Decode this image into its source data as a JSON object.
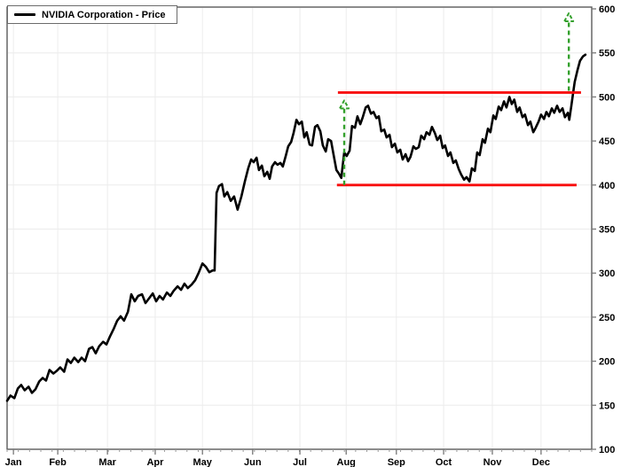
{
  "legend": {
    "label": "NVIDIA Corporation - Price",
    "swatch_color": "#000000"
  },
  "colors": {
    "price_line": "#000000",
    "level_lines": "#f80c0c",
    "arrows": "#33a02c",
    "grid": "#ececec",
    "border": "#5a5a5a",
    "tick": "#777777",
    "minor_tick": "#9a9a9a",
    "text": "#000000",
    "background": "#ffffff"
  },
  "chart_data": {
    "type": "line",
    "title": "NVIDIA Corporation - Price",
    "xlabel": "",
    "ylabel": "",
    "x_axis": {
      "labels": [
        "Jan",
        "Feb",
        "Mar",
        "Apr",
        "May",
        "Jun",
        "Jul",
        "Aug",
        "Sep",
        "Oct",
        "Nov",
        "Dec"
      ],
      "label_positions_t": [
        0.13,
        1.04,
        2.06,
        3.04,
        4.01,
        5.04,
        6.01,
        6.96,
        7.99,
        8.96,
        9.96,
        10.96
      ],
      "t_domain": [
        0,
        12
      ],
      "minor_tick_count": 52,
      "grid_vertical": true
    },
    "y_axis": {
      "min": 100,
      "max": 600,
      "tick_interval": 50,
      "tick_labels": [
        "600",
        "550",
        "500",
        "450",
        "400",
        "350",
        "300",
        "250",
        "200",
        "150",
        "100"
      ],
      "side": "right",
      "grid_horizontal": true
    },
    "series": [
      {
        "name": "NVIDIA Corporation - Price",
        "color": "#000000",
        "points": [
          [
            0,
            155
          ],
          [
            0.07,
            161
          ],
          [
            0.15,
            158
          ],
          [
            0.22,
            169
          ],
          [
            0.29,
            173
          ],
          [
            0.36,
            167
          ],
          [
            0.44,
            171
          ],
          [
            0.51,
            164
          ],
          [
            0.58,
            168
          ],
          [
            0.66,
            177
          ],
          [
            0.73,
            181
          ],
          [
            0.8,
            178
          ],
          [
            0.87,
            190
          ],
          [
            0.95,
            186
          ],
          [
            1.02,
            189
          ],
          [
            1.09,
            193
          ],
          [
            1.17,
            188
          ],
          [
            1.24,
            202
          ],
          [
            1.31,
            198
          ],
          [
            1.38,
            204
          ],
          [
            1.46,
            199
          ],
          [
            1.53,
            204
          ],
          [
            1.6,
            200
          ],
          [
            1.68,
            214
          ],
          [
            1.75,
            216
          ],
          [
            1.82,
            209
          ],
          [
            1.89,
            217
          ],
          [
            1.97,
            222
          ],
          [
            2.04,
            219
          ],
          [
            2.11,
            228
          ],
          [
            2.19,
            237
          ],
          [
            2.26,
            246
          ],
          [
            2.33,
            251
          ],
          [
            2.4,
            246
          ],
          [
            2.48,
            256
          ],
          [
            2.55,
            276
          ],
          [
            2.62,
            268
          ],
          [
            2.69,
            274
          ],
          [
            2.77,
            276
          ],
          [
            2.84,
            266
          ],
          [
            2.91,
            271
          ],
          [
            2.99,
            277
          ],
          [
            3.06,
            268
          ],
          [
            3.13,
            274
          ],
          [
            3.2,
            270
          ],
          [
            3.28,
            278
          ],
          [
            3.35,
            274
          ],
          [
            3.42,
            280
          ],
          [
            3.5,
            285
          ],
          [
            3.57,
            281
          ],
          [
            3.64,
            288
          ],
          [
            3.71,
            283
          ],
          [
            3.79,
            287
          ],
          [
            3.86,
            292
          ],
          [
            3.93,
            300
          ],
          [
            4.01,
            311
          ],
          [
            4.08,
            307
          ],
          [
            4.15,
            301
          ],
          [
            4.22,
            303
          ],
          [
            4.26,
            303
          ],
          [
            4.28,
            348
          ],
          [
            4.3,
            391
          ],
          [
            4.35,
            399
          ],
          [
            4.41,
            401
          ],
          [
            4.46,
            387
          ],
          [
            4.52,
            392
          ],
          [
            4.59,
            382
          ],
          [
            4.66,
            387
          ],
          [
            4.73,
            372
          ],
          [
            4.81,
            387
          ],
          [
            4.88,
            404
          ],
          [
            4.95,
            419
          ],
          [
            5.01,
            429
          ],
          [
            5.06,
            426
          ],
          [
            5.12,
            431
          ],
          [
            5.17,
            417
          ],
          [
            5.23,
            422
          ],
          [
            5.28,
            410
          ],
          [
            5.34,
            415
          ],
          [
            5.39,
            407
          ],
          [
            5.44,
            421
          ],
          [
            5.5,
            426
          ],
          [
            5.55,
            423
          ],
          [
            5.61,
            425
          ],
          [
            5.66,
            421
          ],
          [
            5.72,
            433
          ],
          [
            5.77,
            444
          ],
          [
            5.83,
            449
          ],
          [
            5.88,
            459
          ],
          [
            5.94,
            474
          ],
          [
            5.99,
            469
          ],
          [
            6.05,
            472
          ],
          [
            6.1,
            454
          ],
          [
            6.15,
            460
          ],
          [
            6.21,
            446
          ],
          [
            6.26,
            445
          ],
          [
            6.32,
            466
          ],
          [
            6.37,
            468
          ],
          [
            6.43,
            461
          ],
          [
            6.48,
            445
          ],
          [
            6.54,
            438
          ],
          [
            6.59,
            452
          ],
          [
            6.65,
            450
          ],
          [
            6.7,
            435
          ],
          [
            6.76,
            417
          ],
          [
            6.81,
            413
          ],
          [
            6.86,
            408
          ],
          [
            6.92,
            437
          ],
          [
            6.97,
            433
          ],
          [
            7.03,
            439
          ],
          [
            7.08,
            467
          ],
          [
            7.14,
            465
          ],
          [
            7.19,
            478
          ],
          [
            7.25,
            469
          ],
          [
            7.3,
            477
          ],
          [
            7.36,
            488
          ],
          [
            7.41,
            490
          ],
          [
            7.47,
            481
          ],
          [
            7.52,
            483
          ],
          [
            7.58,
            476
          ],
          [
            7.63,
            478
          ],
          [
            7.68,
            461
          ],
          [
            7.74,
            463
          ],
          [
            7.79,
            454
          ],
          [
            7.85,
            457
          ],
          [
            7.9,
            443
          ],
          [
            7.96,
            447
          ],
          [
            8.01,
            437
          ],
          [
            8.07,
            440
          ],
          [
            8.12,
            429
          ],
          [
            8.18,
            435
          ],
          [
            8.23,
            427
          ],
          [
            8.28,
            432
          ],
          [
            8.34,
            444
          ],
          [
            8.39,
            441
          ],
          [
            8.45,
            443
          ],
          [
            8.5,
            456
          ],
          [
            8.56,
            452
          ],
          [
            8.61,
            460
          ],
          [
            8.67,
            457
          ],
          [
            8.72,
            466
          ],
          [
            8.78,
            459
          ],
          [
            8.83,
            451
          ],
          [
            8.89,
            456
          ],
          [
            8.94,
            442
          ],
          [
            8.99,
            445
          ],
          [
            9.05,
            433
          ],
          [
            9.1,
            437
          ],
          [
            9.16,
            425
          ],
          [
            9.21,
            428
          ],
          [
            9.27,
            418
          ],
          [
            9.32,
            412
          ],
          [
            9.38,
            406
          ],
          [
            9.43,
            409
          ],
          [
            9.49,
            404
          ],
          [
            9.54,
            419
          ],
          [
            9.6,
            416
          ],
          [
            9.65,
            437
          ],
          [
            9.7,
            434
          ],
          [
            9.76,
            452
          ],
          [
            9.81,
            448
          ],
          [
            9.87,
            464
          ],
          [
            9.92,
            460
          ],
          [
            9.98,
            479
          ],
          [
            10.03,
            475
          ],
          [
            10.09,
            489
          ],
          [
            10.14,
            485
          ],
          [
            10.2,
            495
          ],
          [
            10.25,
            488
          ],
          [
            10.31,
            500
          ],
          [
            10.36,
            492
          ],
          [
            10.41,
            497
          ],
          [
            10.47,
            483
          ],
          [
            10.52,
            488
          ],
          [
            10.58,
            477
          ],
          [
            10.63,
            480
          ],
          [
            10.69,
            468
          ],
          [
            10.74,
            472
          ],
          [
            10.8,
            460
          ],
          [
            10.85,
            465
          ],
          [
            10.91,
            472
          ],
          [
            10.96,
            480
          ],
          [
            11.02,
            475
          ],
          [
            11.07,
            483
          ],
          [
            11.12,
            478
          ],
          [
            11.18,
            487
          ],
          [
            11.23,
            482
          ],
          [
            11.29,
            490
          ],
          [
            11.34,
            483
          ],
          [
            11.4,
            487
          ],
          [
            11.45,
            477
          ],
          [
            11.51,
            482
          ],
          [
            11.54,
            474
          ],
          [
            11.58,
            489
          ],
          [
            11.62,
            505
          ],
          [
            11.65,
            517
          ],
          [
            11.71,
            531
          ],
          [
            11.76,
            541
          ],
          [
            11.82,
            546
          ],
          [
            11.87,
            548
          ]
        ]
      }
    ],
    "annotations": [
      {
        "id": "resistance-line",
        "type": "hline",
        "price": 505,
        "t_start": 6.79,
        "t_end": 11.78,
        "color": "#f80c0c"
      },
      {
        "id": "support-line",
        "type": "hline",
        "price": 400,
        "t_start": 6.77,
        "t_end": 11.69,
        "color": "#f80c0c"
      },
      {
        "id": "breakout-arrow-aug",
        "type": "vertical-arrow-up",
        "t": 6.92,
        "price_from": 400,
        "price_to": 497,
        "color": "#33a02c",
        "line_style": "dashed"
      },
      {
        "id": "breakout-arrow-dec",
        "type": "vertical-arrow-up",
        "t": 11.53,
        "price_from": 507,
        "price_to": 596,
        "color": "#33a02c",
        "line_style": "dashed"
      }
    ]
  }
}
